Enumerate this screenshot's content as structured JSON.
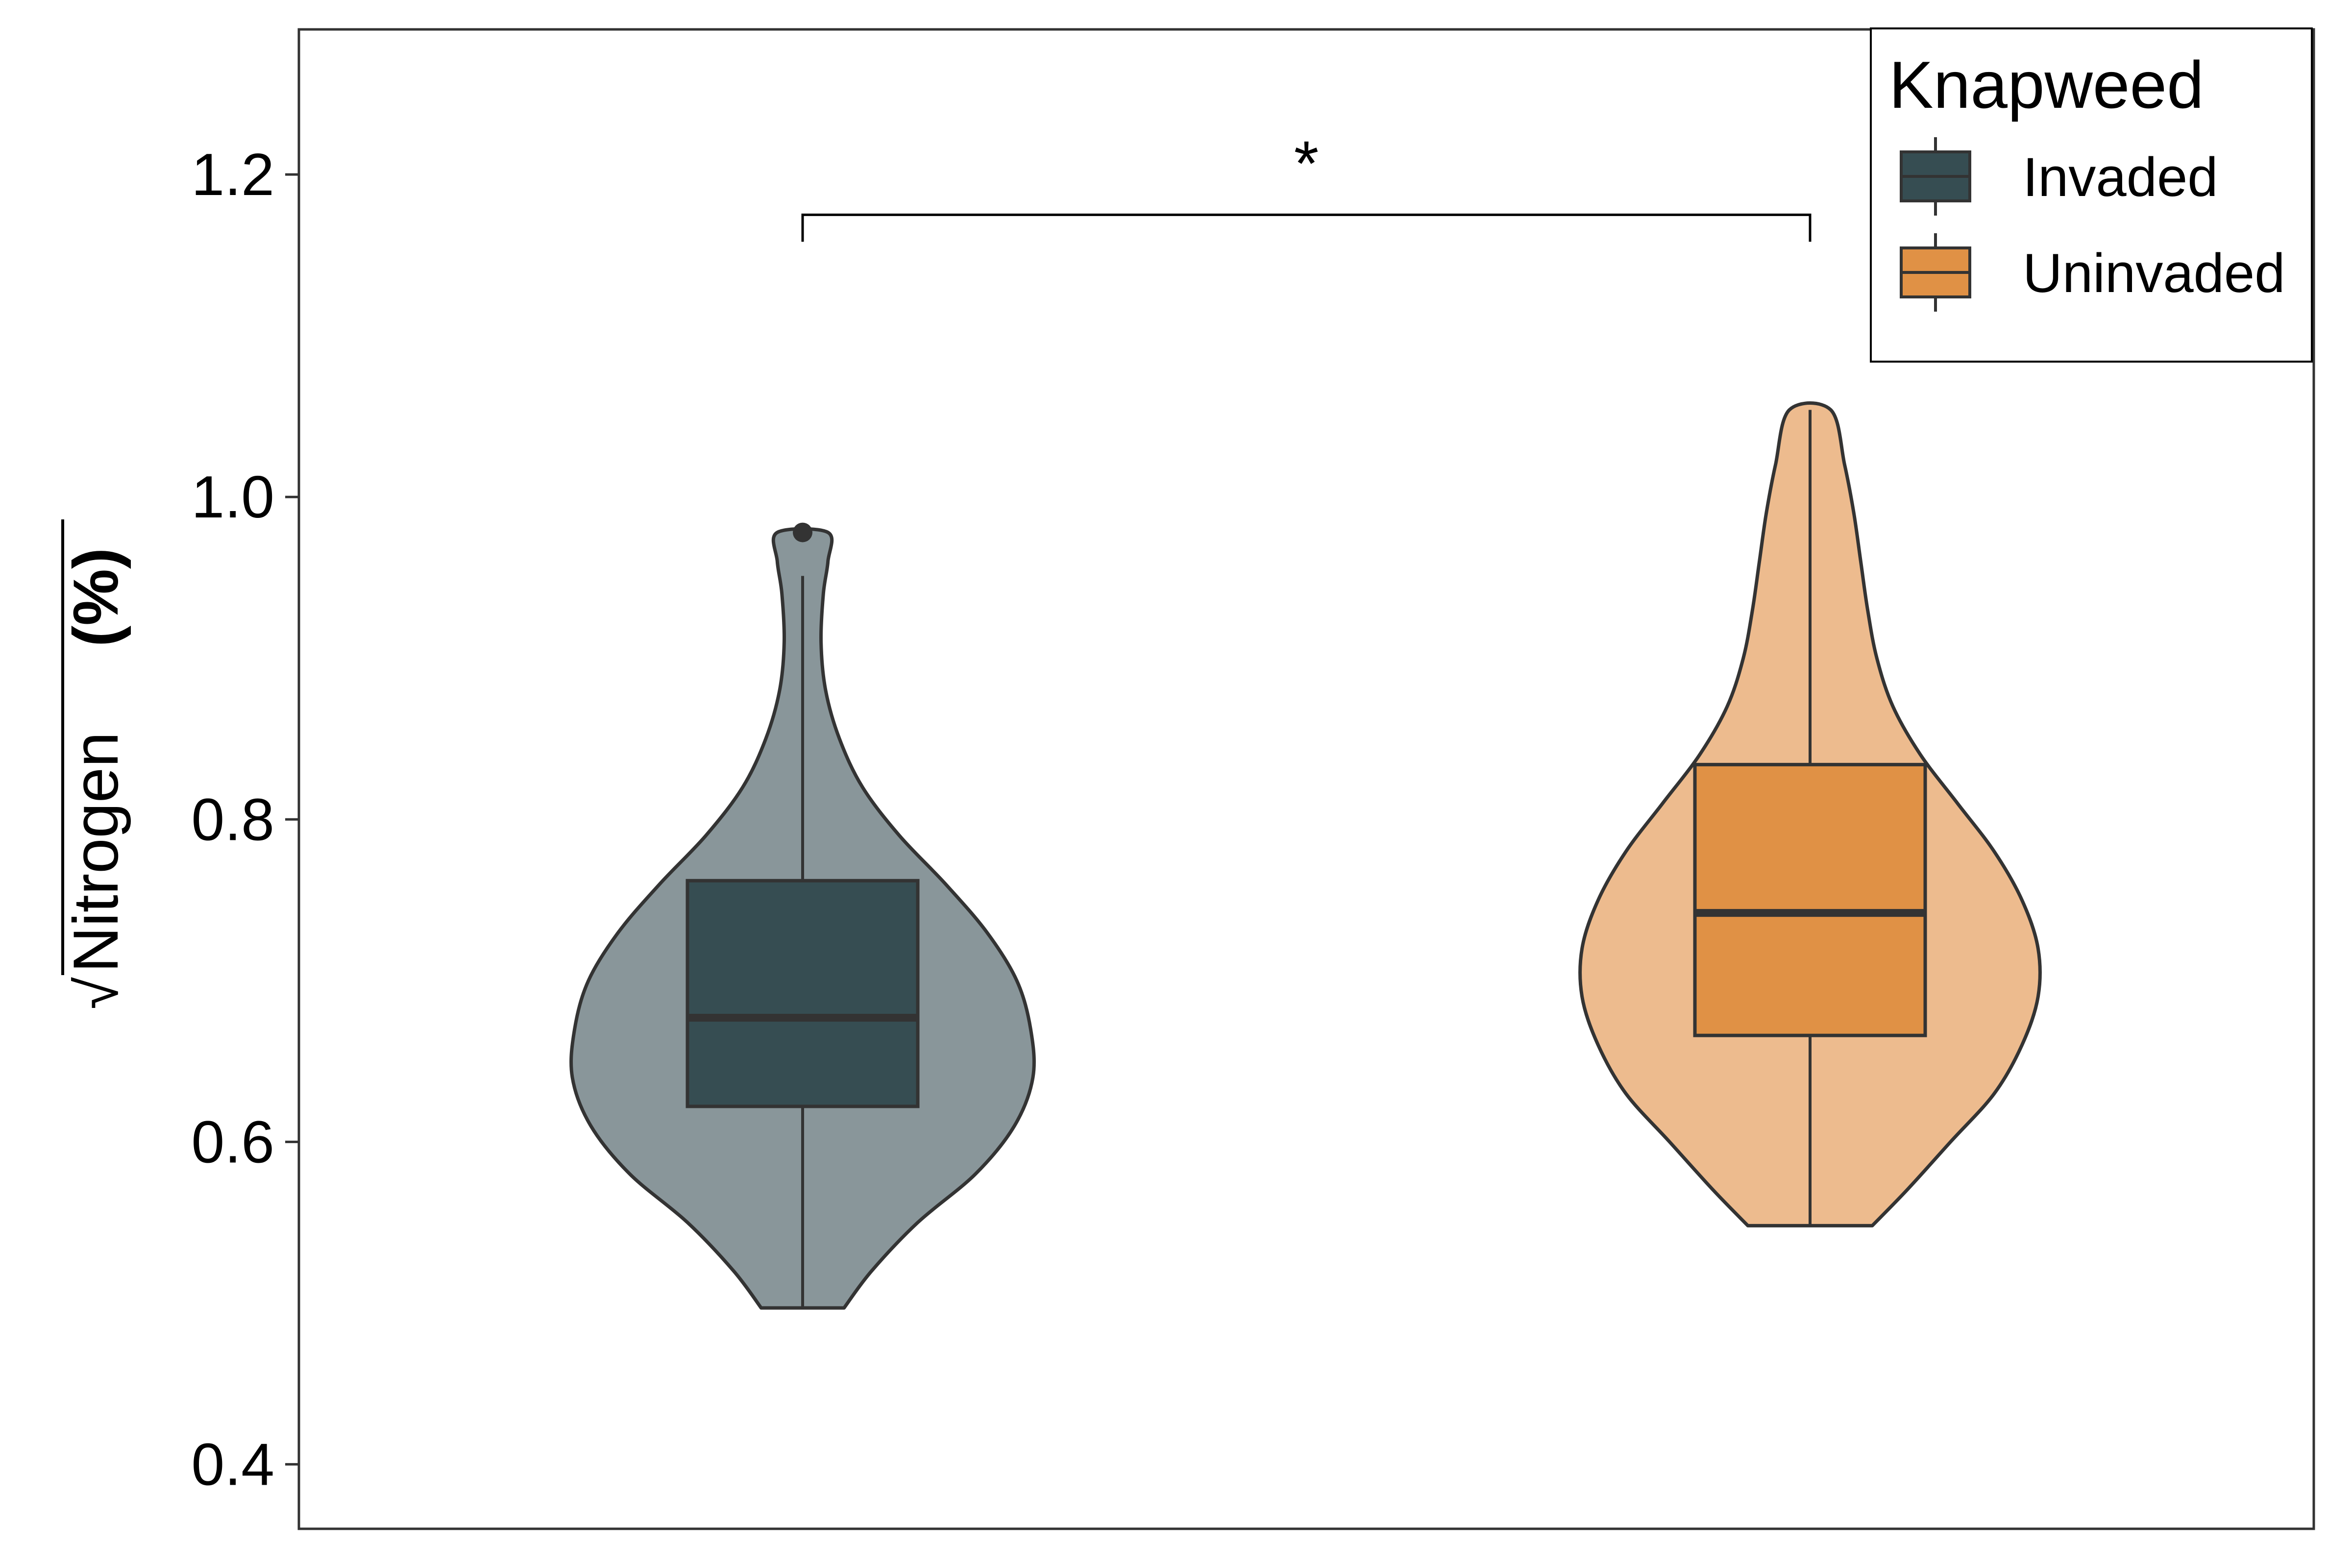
{
  "chart_data": {
    "type": "violin",
    "title": "",
    "xlabel": "",
    "ylabel": {
      "radical": "√",
      "text": "Nitrogen",
      "unit": "(%)"
    },
    "ylim": [
      0.36,
      1.29
    ],
    "yticks": [
      {
        "value": 0.4,
        "label": "0.4"
      },
      {
        "value": 0.6,
        "label": "0.6"
      },
      {
        "value": 0.8,
        "label": "0.8"
      },
      {
        "value": 1.0,
        "label": "1.0"
      },
      {
        "value": 1.2,
        "label": "1.2"
      }
    ],
    "x_axis_text_visible": false,
    "grid": false,
    "significance": {
      "label": "*",
      "between": [
        "Invaded",
        "Uninvaded"
      ],
      "y": 1.175
    },
    "legend": {
      "title": "Knapweed",
      "position": "top-right",
      "entries": [
        "Invaded",
        "Uninvaded"
      ]
    },
    "series": [
      {
        "name": "Invaded",
        "color": "#364d52",
        "violin_fill": "#89969a",
        "boxplot": {
          "min": 0.497,
          "q1": 0.622,
          "median": 0.677,
          "q3": 0.762,
          "whisker_high": 0.951,
          "outliers": [
            0.978
          ]
        },
        "density_profile": [
          {
            "y": 0.497,
            "w": 0.18
          },
          {
            "y": 0.52,
            "w": 0.3
          },
          {
            "y": 0.55,
            "w": 0.5
          },
          {
            "y": 0.58,
            "w": 0.75
          },
          {
            "y": 0.61,
            "w": 0.92
          },
          {
            "y": 0.64,
            "w": 1.0
          },
          {
            "y": 0.67,
            "w": 0.99
          },
          {
            "y": 0.7,
            "w": 0.93
          },
          {
            "y": 0.73,
            "w": 0.8
          },
          {
            "y": 0.76,
            "w": 0.62
          },
          {
            "y": 0.79,
            "w": 0.42
          },
          {
            "y": 0.82,
            "w": 0.26
          },
          {
            "y": 0.85,
            "w": 0.16
          },
          {
            "y": 0.88,
            "w": 0.1
          },
          {
            "y": 0.91,
            "w": 0.08
          },
          {
            "y": 0.94,
            "w": 0.09
          },
          {
            "y": 0.96,
            "w": 0.11
          },
          {
            "y": 0.978,
            "w": 0.11
          }
        ]
      },
      {
        "name": "Uninvaded",
        "color": "#e09145",
        "violin_fill": "#edbb8e",
        "boxplot": {
          "min": 0.548,
          "q1": 0.666,
          "median": 0.742,
          "q3": 0.834,
          "whisker_high": 1.054,
          "outliers": []
        },
        "density_profile": [
          {
            "y": 0.548,
            "w": 0.27
          },
          {
            "y": 0.57,
            "w": 0.42
          },
          {
            "y": 0.6,
            "w": 0.61
          },
          {
            "y": 0.63,
            "w": 0.8
          },
          {
            "y": 0.66,
            "w": 0.92
          },
          {
            "y": 0.69,
            "w": 0.99
          },
          {
            "y": 0.72,
            "w": 0.99
          },
          {
            "y": 0.75,
            "w": 0.92
          },
          {
            "y": 0.78,
            "w": 0.8
          },
          {
            "y": 0.81,
            "w": 0.64
          },
          {
            "y": 0.84,
            "w": 0.48
          },
          {
            "y": 0.87,
            "w": 0.36
          },
          {
            "y": 0.9,
            "w": 0.29
          },
          {
            "y": 0.93,
            "w": 0.25
          },
          {
            "y": 0.96,
            "w": 0.22
          },
          {
            "y": 0.99,
            "w": 0.19
          },
          {
            "y": 1.02,
            "w": 0.15
          },
          {
            "y": 1.054,
            "w": 0.09
          }
        ]
      }
    ]
  }
}
